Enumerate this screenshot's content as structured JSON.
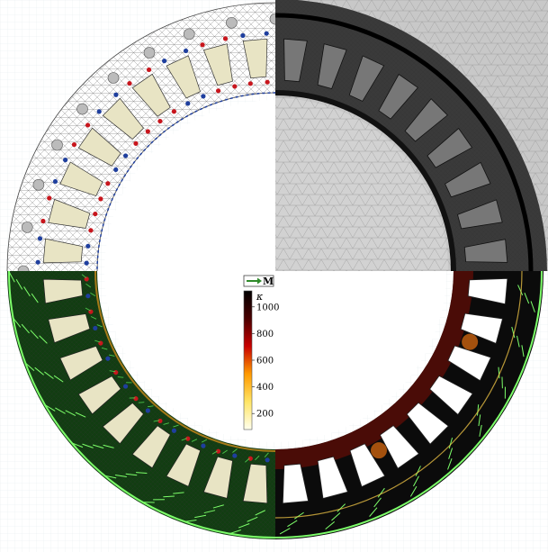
{
  "legend": {
    "symbol": "M",
    "colorbar_label": "κ",
    "ticks": [
      "1000",
      "800",
      "600",
      "400",
      "200"
    ],
    "tick_values": [
      1000,
      800,
      600,
      400,
      200
    ],
    "range": [
      80,
      1120
    ],
    "colormap": [
      "#ffffee",
      "#ffe566",
      "#ff9a00",
      "#c80000",
      "#4a0000",
      "#000000"
    ]
  },
  "machine": {
    "slots": 36,
    "quadrants": [
      "geometry-and-winding",
      "finite-element-mesh",
      "flux-and-magnetization-field",
      "field-intensity-map"
    ],
    "colors": {
      "winding_a": "#c8161d",
      "winding_b": "#1f3f9e",
      "conductor": "#e8e4c4",
      "mesh_bg": "#c8c8c8",
      "arrow": "#2f8a2a",
      "grid": "#e6ecef"
    }
  }
}
